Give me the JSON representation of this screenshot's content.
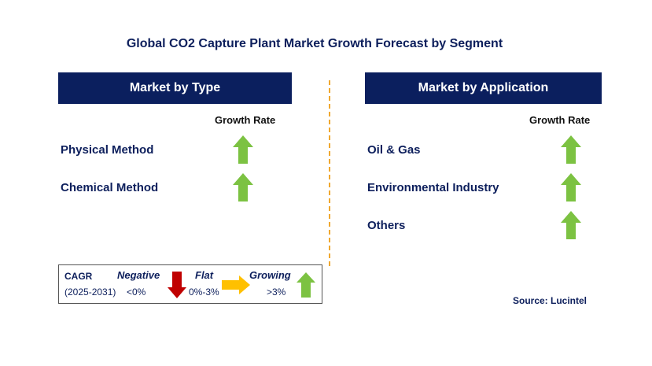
{
  "title": "Global CO2 Capture Plant Market Growth Forecast by Segment",
  "left_panel": {
    "header": "Market by Type",
    "growth_rate_label": "Growth Rate",
    "segments": [
      {
        "label": "Physical Method",
        "trend": "growing"
      },
      {
        "label": "Chemical Method",
        "trend": "growing"
      }
    ]
  },
  "right_panel": {
    "header": "Market by Application",
    "growth_rate_label": "Growth Rate",
    "segments": [
      {
        "label": "Oil & Gas",
        "trend": "growing"
      },
      {
        "label": "Environmental Industry",
        "trend": "growing"
      },
      {
        "label": "Others",
        "trend": "growing"
      }
    ]
  },
  "legend": {
    "cagr_label": "CAGR",
    "period": "(2025-2031)",
    "negative": {
      "label": "Negative",
      "range": "<0%",
      "icon": "down-arrow-icon",
      "color": "#c00000"
    },
    "flat": {
      "label": "Flat",
      "range": "0%-3%",
      "icon": "right-arrow-icon",
      "color": "#ffc000"
    },
    "growing": {
      "label": "Growing",
      "range": ">3%",
      "icon": "up-arrow-icon",
      "color": "#7cc242"
    }
  },
  "source": "Source: Lucintel",
  "colors": {
    "header_bg": "#0b1f5e",
    "text_navy": "#0d1f5c",
    "divider": "#f0a830",
    "growing_arrow": "#7cc242"
  }
}
